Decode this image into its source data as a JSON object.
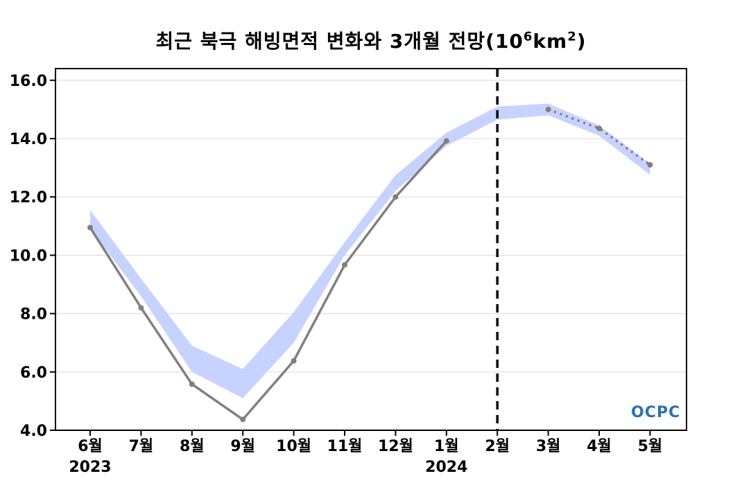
{
  "title": {
    "text": "최근 북극 해빙면적 변화와 3개월 전망(10",
    "exp1": "6",
    "unit": "km",
    "exp2": "2",
    "close": ")"
  },
  "logo": "OCPC",
  "colors": {
    "observed": "#808080",
    "forecast": "#808080",
    "range": "#c6d3ff",
    "divider": "#000000",
    "grid": "#d9d9d9",
    "logo_blue": "#2a6fb8"
  },
  "chart_data": {
    "type": "line",
    "title": "최근 북극 해빙면적 변화와 3개월 전망(10^6km^2)",
    "categories": [
      "6월",
      "7월",
      "8월",
      "9월",
      "10월",
      "11월",
      "12월",
      "1월",
      "2월",
      "3월",
      "4월",
      "5월"
    ],
    "year_labels": [
      {
        "category": "6월",
        "text": "2023"
      },
      {
        "category": "1월",
        "text": "2024"
      }
    ],
    "ylim": [
      4.0,
      16.4
    ],
    "yticks": [
      4.0,
      6.0,
      8.0,
      10.0,
      12.0,
      14.0,
      16.0
    ],
    "grid": true,
    "divider_after": "1월",
    "divider_at": "2월",
    "series": [
      {
        "style": "solid",
        "values": [
          10.95,
          8.2,
          5.58,
          4.37,
          6.38,
          9.67,
          12.0,
          13.92,
          null,
          null,
          null,
          null
        ]
      },
      {
        "style": "dotted",
        "values": [
          null,
          null,
          null,
          null,
          null,
          null,
          null,
          null,
          null,
          15.0,
          14.35,
          13.1
        ]
      }
    ],
    "range_band": {
      "lower": [
        10.9,
        8.6,
        6.0,
        5.1,
        7.0,
        10.0,
        12.2,
        13.75,
        14.65,
        14.8,
        14.1,
        12.75
      ],
      "upper": [
        11.55,
        9.2,
        6.9,
        6.1,
        8.05,
        10.45,
        12.75,
        14.2,
        15.1,
        15.2,
        14.45,
        13.15
      ]
    }
  }
}
